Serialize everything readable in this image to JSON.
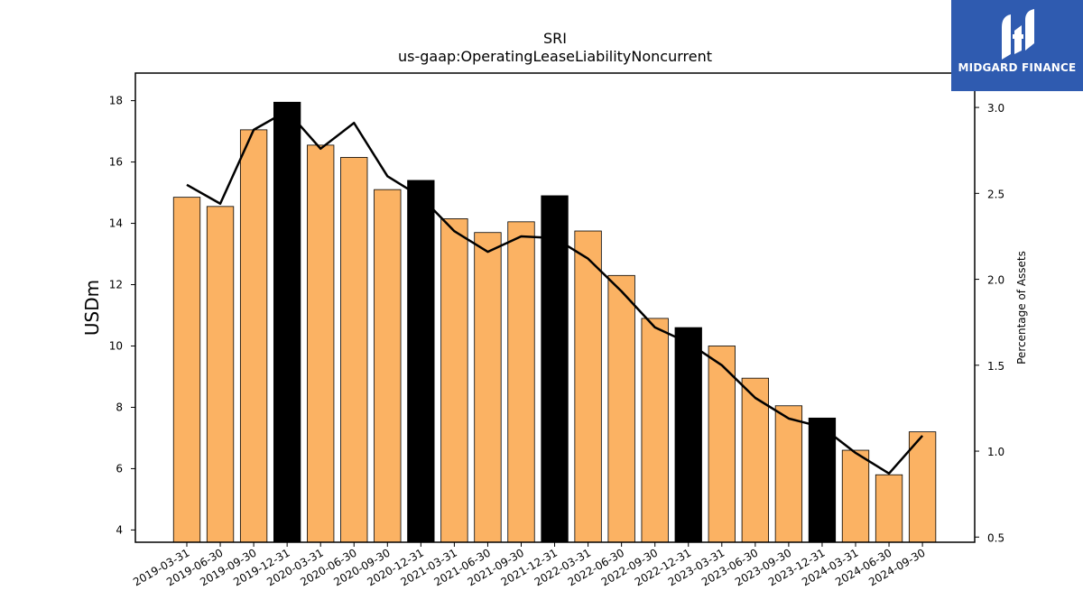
{
  "chart_data": {
    "type": "bar",
    "title": "SRI",
    "subtitle": "us-gaap:OperatingLeaseLiabilityNoncurrent",
    "ylabel": "USDm",
    "ylabel_right": "Percentage of Assets",
    "ylim": [
      3.6,
      18.9
    ],
    "ylim_right": [
      0.47,
      3.2
    ],
    "yticks": [
      4,
      6,
      8,
      10,
      12,
      14,
      16,
      18
    ],
    "yticks_right": [
      "0.5",
      "1.0",
      "1.5",
      "2.0",
      "2.5",
      "3.0"
    ],
    "categories": [
      "2019-03-31",
      "2019-06-30",
      "2019-09-30",
      "2019-12-31",
      "2020-03-31",
      "2020-06-30",
      "2020-09-30",
      "2020-12-31",
      "2021-03-31",
      "2021-06-30",
      "2021-09-30",
      "2021-12-31",
      "2022-03-31",
      "2022-06-30",
      "2022-09-30",
      "2022-12-31",
      "2023-03-31",
      "2023-06-30",
      "2023-09-30",
      "2023-12-31",
      "2024-03-31",
      "2024-06-30",
      "2024-09-30"
    ],
    "series": [
      {
        "type": "bar",
        "values": [
          14.85,
          14.55,
          17.05,
          17.95,
          16.55,
          16.15,
          15.1,
          15.4,
          14.15,
          13.7,
          14.05,
          14.9,
          13.75,
          12.3,
          10.9,
          10.6,
          10.0,
          8.95,
          8.05,
          7.65,
          6.6,
          5.8,
          7.2
        ],
        "highlight": [
          false,
          false,
          false,
          true,
          false,
          false,
          false,
          true,
          false,
          false,
          false,
          true,
          false,
          false,
          false,
          true,
          false,
          false,
          false,
          true,
          false,
          false,
          false
        ],
        "color": "#fbb263",
        "highlight_color": "#000000"
      },
      {
        "type": "line",
        "axis": "right",
        "values": [
          2.55,
          2.44,
          2.87,
          2.98,
          2.76,
          2.91,
          2.6,
          2.48,
          2.28,
          2.16,
          2.25,
          2.24,
          2.12,
          1.93,
          1.72,
          1.63,
          1.5,
          1.31,
          1.19,
          1.14,
          0.99,
          0.87,
          1.09
        ],
        "color": "#000000"
      }
    ]
  },
  "logo": {
    "text": "MIDGARD FINANCE",
    "color": "#2f5bb0"
  }
}
